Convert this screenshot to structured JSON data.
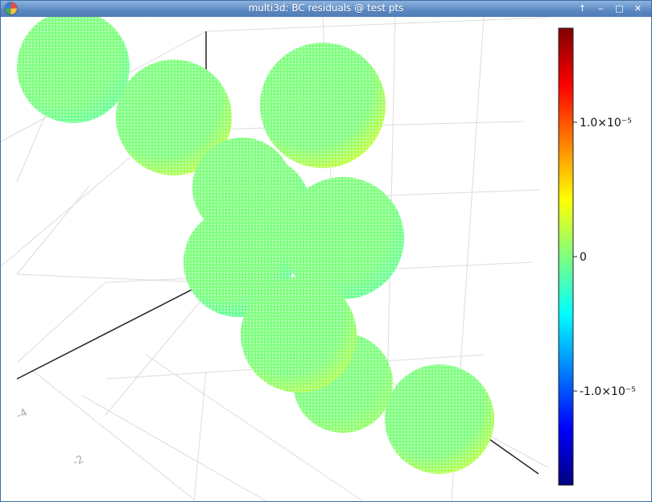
{
  "window": {
    "title": "multi3d: BC residuals @ test pts",
    "buttons": {
      "up": "↑",
      "minimize": "‒",
      "maximize": "□",
      "close": "✕"
    }
  },
  "colorbar": {
    "colormap": "jet",
    "range": [
      -1.7e-05,
      1.7e-05
    ],
    "ticks": [
      {
        "value": 1e-05,
        "label": "1.0×10⁻⁵"
      },
      {
        "value": 0,
        "label": "0"
      },
      {
        "value": -1e-05,
        "label": "-1.0×10⁻⁵"
      }
    ]
  },
  "axes": {
    "tick_labels": [
      "-4",
      "-2"
    ]
  },
  "spheres": [
    {
      "residual": -1e-06
    },
    {
      "residual": 2.5e-06
    },
    {
      "residual": 1e-06
    },
    {
      "residual": -2e-06
    },
    {
      "residual": -1.5e-06
    },
    {
      "residual": 3e-06
    },
    {
      "residual": -1e-06
    },
    {
      "residual": 2e-06
    },
    {
      "residual": 1e-06
    },
    {
      "residual": 2.5e-06
    },
    {
      "residual": 5e-07
    }
  ]
}
